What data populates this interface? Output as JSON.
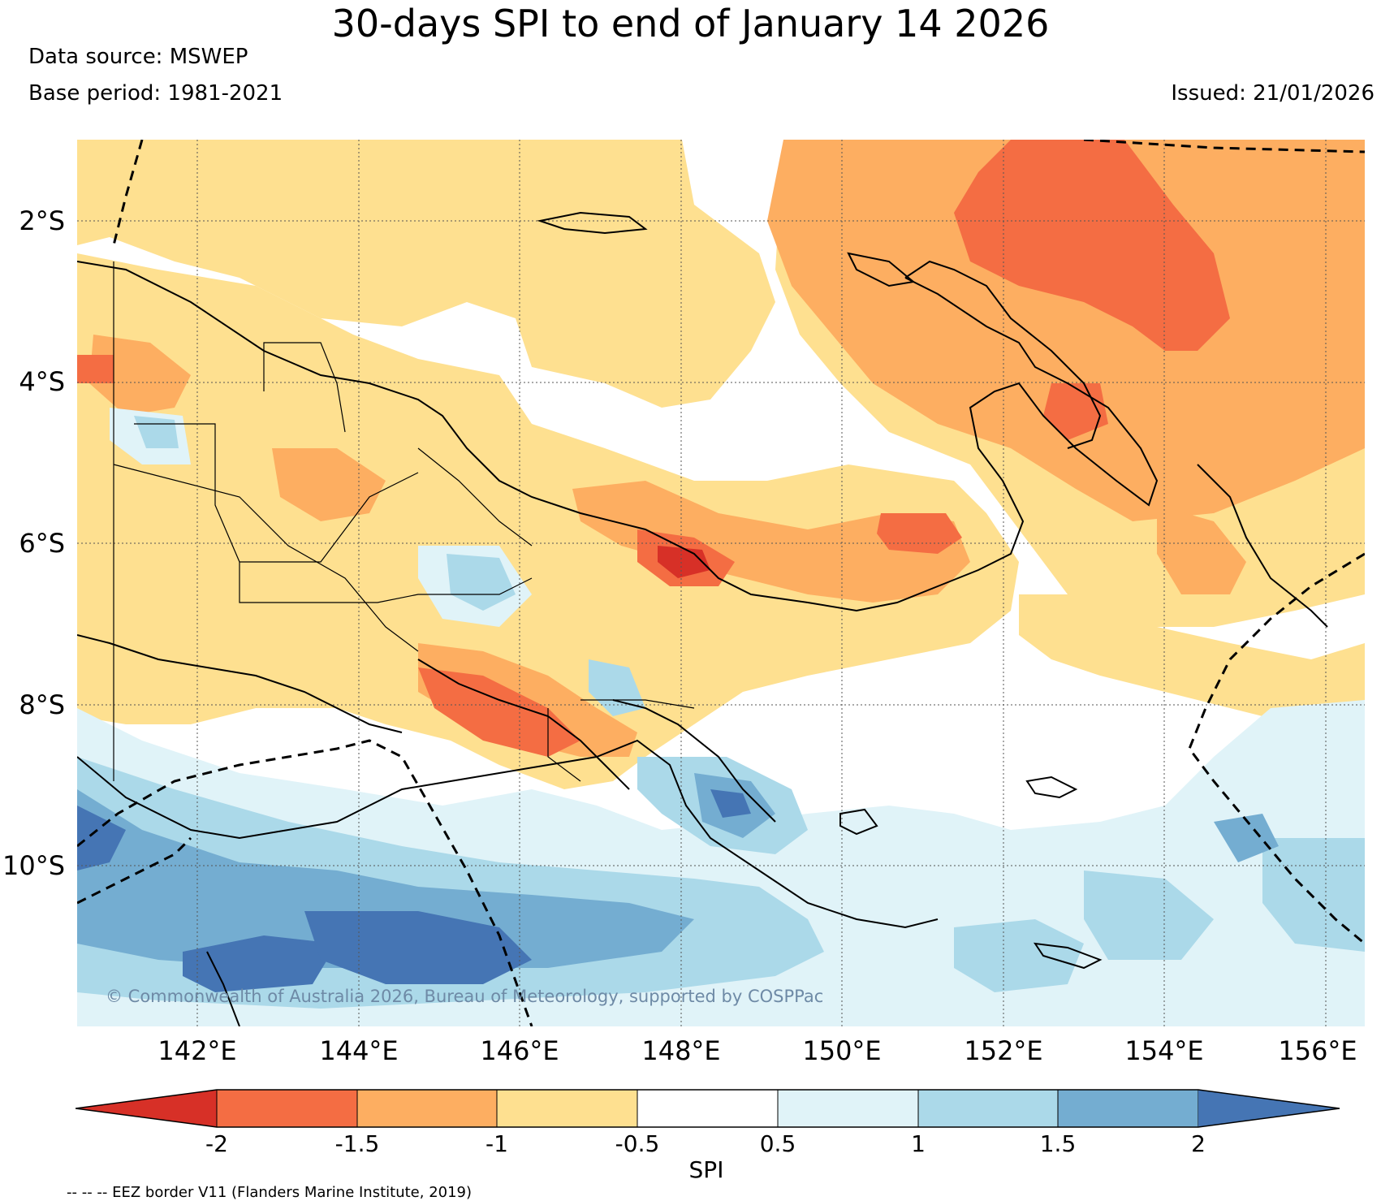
{
  "title": "30-days SPI to end of January 14 2026",
  "data_source": "Data source: MSWEP",
  "base_period": "Base period: 1981-2021",
  "issued": "Issued: 21/01/2026",
  "copyright": "© Commonwealth of Australia 2026, Bureau of Meteorology, supported by COSPPac",
  "eez_note": "-- -- -- EEZ border V11 (Flanders Marine Institute, 2019)",
  "colorbar": {
    "label": "SPI",
    "ticks": [
      "-2",
      "-1.5",
      "-1",
      "-0.5",
      "0.5",
      "1",
      "1.5",
      "2"
    ],
    "colors": [
      "#d73027",
      "#f46d43",
      "#fdae61",
      "#fee090",
      "#ffffff",
      "#e0f3f8",
      "#abd9e9",
      "#74add1",
      "#4575b4"
    ]
  },
  "chart_data": {
    "type": "heatmap",
    "title": "30-days SPI to end of January 14 2026",
    "variable": "SPI",
    "xlim": [
      140.5,
      156.5
    ],
    "ylim": [
      -12,
      -1
    ],
    "lat_ticks": [
      -2,
      -4,
      -6,
      -8,
      -10
    ],
    "lat_labels": [
      "2°S",
      "4°S",
      "6°S",
      "8°S",
      "10°S"
    ],
    "lon_ticks": [
      142,
      144,
      146,
      148,
      150,
      152,
      154,
      156
    ],
    "lon_labels": [
      "142°E",
      "144°E",
      "146°E",
      "148°E",
      "150°E",
      "152°E",
      "154°E",
      "156°E"
    ],
    "levels": [
      -2,
      -1.5,
      -1,
      -0.5,
      0.5,
      1,
      1.5,
      2
    ],
    "grid": true
  }
}
